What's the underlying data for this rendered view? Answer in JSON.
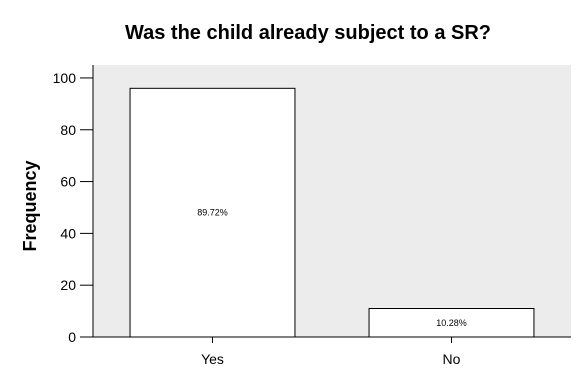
{
  "chart_data": {
    "type": "bar",
    "title": "Was the child already subject to a SR?",
    "xlabel": "",
    "ylabel": "Frequency",
    "categories": [
      "Yes",
      "No"
    ],
    "values": [
      96,
      11
    ],
    "bar_labels": [
      "89.72%",
      "10.28%"
    ],
    "ylim": [
      0,
      105
    ],
    "yticks": [
      0,
      20,
      40,
      60,
      80,
      100
    ],
    "grid": false,
    "legend": "none",
    "colors": {
      "plot_background": "#ececec",
      "bar_fill": "#ffffff",
      "bar_stroke": "#000000"
    }
  }
}
